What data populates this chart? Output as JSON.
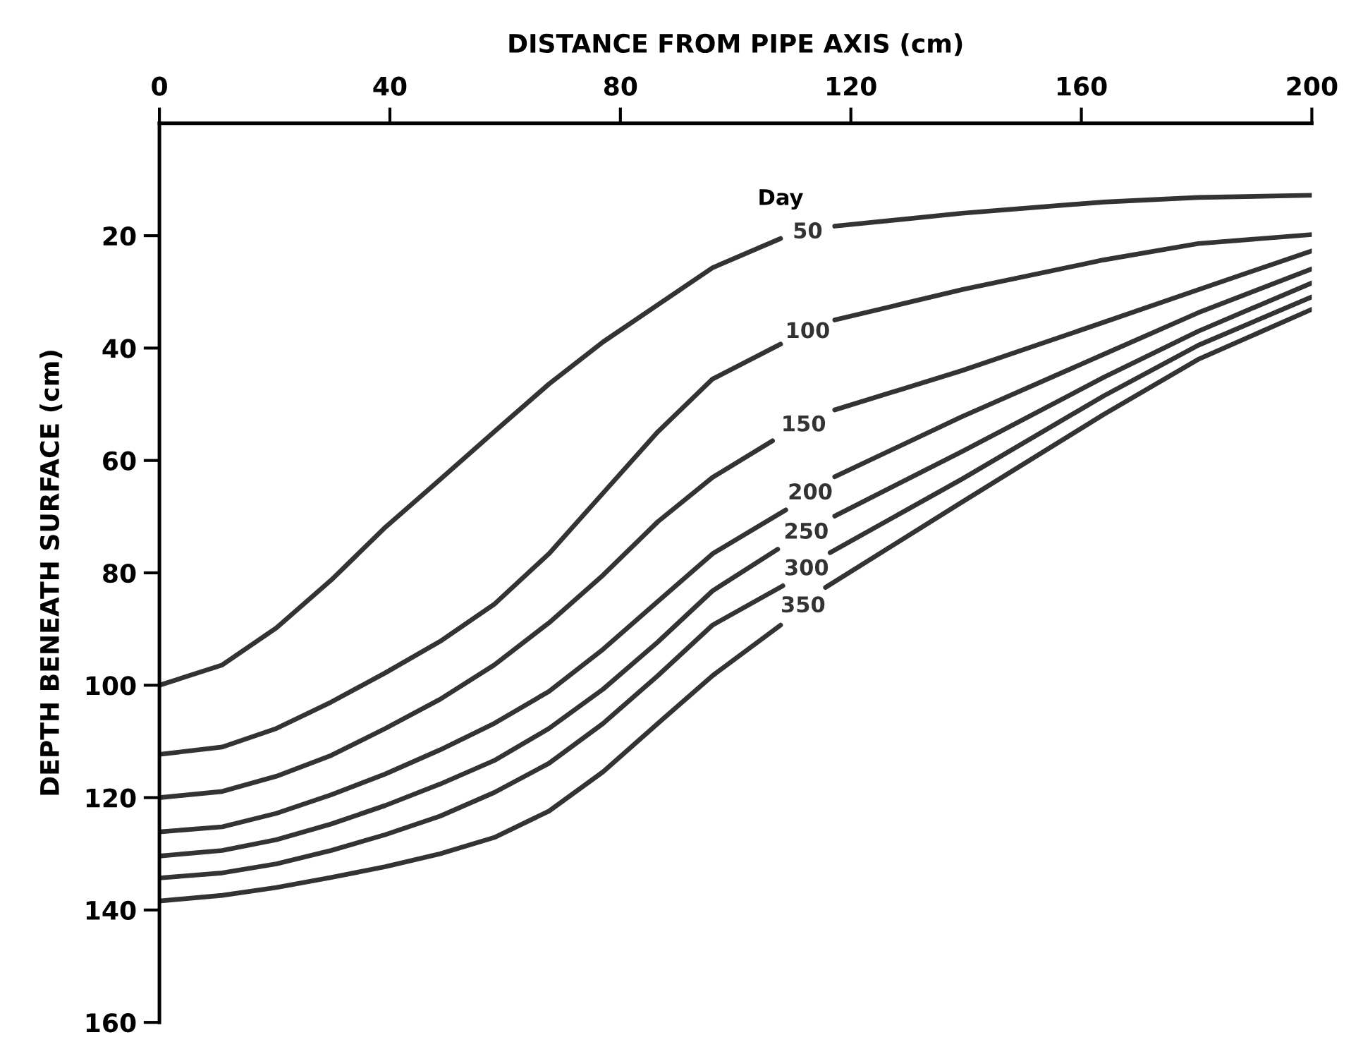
{
  "chart_data": {
    "type": "line",
    "xlabel": "DISTANCE FROM PIPE AXIS (cm)",
    "ylabel": "DEPTH BENEATH SURFACE (cm)",
    "annotations": [
      "Day"
    ],
    "xlim": [
      0,
      200
    ],
    "xticks": [
      0,
      40,
      80,
      120,
      160,
      200
    ],
    "ylim": [
      160,
      0
    ],
    "yticks": [
      20,
      40,
      60,
      80,
      100,
      120,
      140,
      160
    ],
    "grid": false,
    "legend": false,
    "marker": "none",
    "line_style": "solid",
    "series": [
      {
        "name": "50",
        "color": "#333333",
        "x": [
          0,
          10.9,
          20.3,
          29.8,
          39.2,
          48.7,
          58.1,
          67.6,
          77,
          86.5,
          96,
          107.8,
          null,
          117.2,
          139.3,
          163.9,
          180.3,
          200
        ],
        "values": [
          100,
          96.4,
          89.8,
          81.3,
          71.9,
          63.4,
          54.9,
          46.4,
          38.9,
          32.3,
          25.7,
          20.5,
          null,
          18.3,
          16.0,
          14.0,
          13.2,
          12.8
        ]
      },
      {
        "name": "100",
        "color": "#333333",
        "x": [
          0,
          10.9,
          20.3,
          29.8,
          39.2,
          48.7,
          58.1,
          67.6,
          77,
          86.5,
          96,
          107.8,
          null,
          117.2,
          139.3,
          163.9,
          180.3,
          200
        ],
        "values": [
          112.3,
          111,
          107.7,
          103,
          97.8,
          92.2,
          85.6,
          76.6,
          65.8,
          54.9,
          45.5,
          39.3,
          null,
          35.0,
          29.6,
          24.3,
          21.4,
          19.8
        ]
      },
      {
        "name": "150",
        "color": "#333333",
        "x": [
          0,
          10.9,
          20.3,
          29.8,
          39.2,
          48.7,
          58.1,
          67.6,
          77,
          86.5,
          96,
          106.4,
          null,
          117.2,
          139.3,
          163.9,
          180.3,
          200
        ],
        "values": [
          120,
          118.9,
          116.2,
          112.5,
          107.7,
          102.5,
          96.4,
          88.9,
          80.4,
          70.9,
          63,
          56.5,
          null,
          51.0,
          44.0,
          35.4,
          29.6,
          22.7
        ]
      },
      {
        "name": "200",
        "color": "#333333",
        "x": [
          0,
          10.9,
          20.3,
          29.8,
          39.2,
          48.7,
          58.1,
          67.6,
          77,
          86.5,
          96,
          108.7,
          null,
          117.2,
          139.3,
          163.9,
          180.3,
          200
        ],
        "values": [
          126.1,
          125.2,
          122.8,
          119.5,
          115.8,
          111.5,
          106.8,
          101.1,
          93.6,
          85.1,
          76.6,
          68.8,
          null,
          62.9,
          52.2,
          41.1,
          33.7,
          25.9
        ]
      },
      {
        "name": "250",
        "color": "#333333",
        "x": [
          0,
          10.9,
          20.3,
          29.8,
          39.2,
          48.7,
          58.1,
          67.6,
          77,
          86.5,
          96,
          107.3,
          null,
          117.2,
          139.3,
          163.9,
          180.3,
          200
        ],
        "values": [
          130.4,
          129.4,
          127.5,
          124.7,
          121.4,
          117.6,
          113.4,
          107.7,
          100.7,
          92.3,
          83.2,
          75.8,
          null,
          69.9,
          58.4,
          45.2,
          37.0,
          28.4
        ]
      },
      {
        "name": "300",
        "color": "#333333",
        "x": [
          0,
          10.9,
          20.3,
          29.8,
          39.2,
          48.7,
          58.1,
          67.6,
          77,
          86.5,
          96,
          108.2,
          null,
          116.4,
          139.3,
          163.9,
          180.3,
          200
        ],
        "values": [
          134.3,
          133.4,
          131.8,
          129.4,
          126.6,
          123.3,
          119.1,
          113.9,
          106.8,
          98.3,
          89.3,
          82.3,
          null,
          76.4,
          63.3,
          48.5,
          39.5,
          30.9
        ]
      },
      {
        "name": "350",
        "color": "#333333",
        "x": [
          0,
          10.9,
          20.3,
          29.8,
          39.2,
          48.7,
          58.1,
          67.6,
          77,
          86.5,
          96,
          107.8,
          null,
          115.6,
          139.3,
          163.9,
          180.3,
          200
        ],
        "values": [
          138.4,
          137.4,
          136.0,
          134.2,
          132.3,
          130.0,
          127.1,
          122.4,
          115.4,
          106.8,
          98.3,
          89.3,
          null,
          82.6,
          67.4,
          51.8,
          42.0,
          33.1
        ]
      }
    ]
  }
}
